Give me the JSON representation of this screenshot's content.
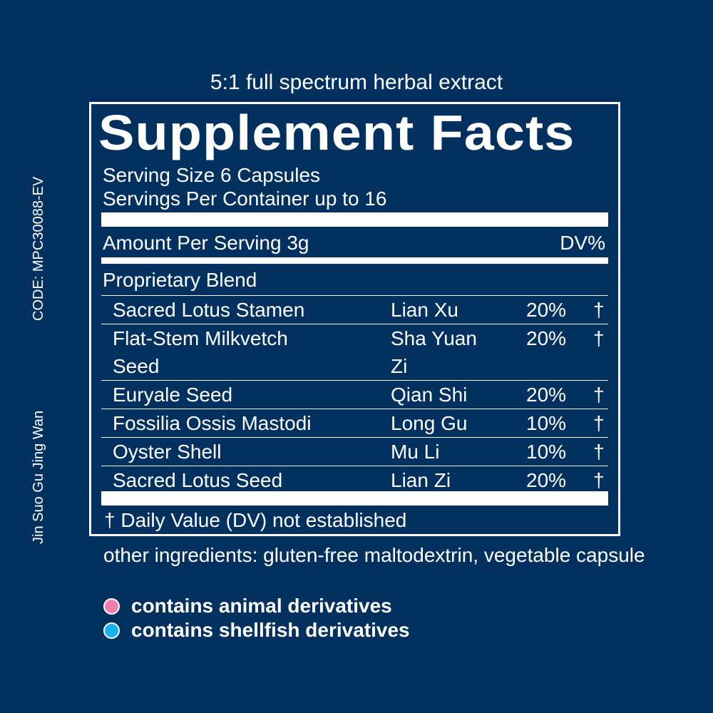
{
  "tagline": "5:1 full spectrum herbal extract",
  "title": "Supplement Facts",
  "serving_size": "Serving Size 6 Capsules",
  "servings_per_container": "Servings Per Container up to 16",
  "amount_per_serving": "Amount Per Serving 3g",
  "dv_header": "DV%",
  "blend_title": "Proprietary Blend",
  "ingredients": [
    {
      "name": "Sacred Lotus Stamen",
      "name2": "",
      "pinyin": "Lian Xu",
      "pinyin2": "",
      "pct": "20%",
      "mark": "†"
    },
    {
      "name": "Flat-Stem Milkvetch",
      "name2": "Seed",
      "pinyin": "Sha Yuan",
      "pinyin2": "Zi",
      "pct": "20%",
      "mark": "†"
    },
    {
      "name": "Euryale Seed",
      "name2": "",
      "pinyin": "Qian Shi",
      "pinyin2": "",
      "pct": "20%",
      "mark": "†"
    },
    {
      "name": "Fossilia Ossis Mastodi",
      "name2": "",
      "pinyin": "Long Gu",
      "pinyin2": "",
      "pct": "10%",
      "mark": "†"
    },
    {
      "name": "Oyster Shell",
      "name2": "",
      "pinyin": "Mu Li",
      "pinyin2": "",
      "pct": "10%",
      "mark": "†"
    },
    {
      "name": "Sacred Lotus Seed",
      "name2": "",
      "pinyin": "Lian Zi",
      "pinyin2": "",
      "pct": "20%",
      "mark": "†"
    }
  ],
  "footnote": "† Daily Value (DV) not established",
  "other_ingredients": "other ingredients: gluten-free maltodextrin, vegetable capsule",
  "legend": [
    {
      "label": "contains animal derivatives",
      "color": "#f07fae"
    },
    {
      "label": "contains shellfish derivatives",
      "color": "#19b1ee"
    }
  ],
  "side_code": "CODE: MPC30088-EV",
  "side_name": "Jin Suo Gu Jing Wan",
  "colors": {
    "background": "#02305f",
    "foreground": "#ffffff"
  }
}
